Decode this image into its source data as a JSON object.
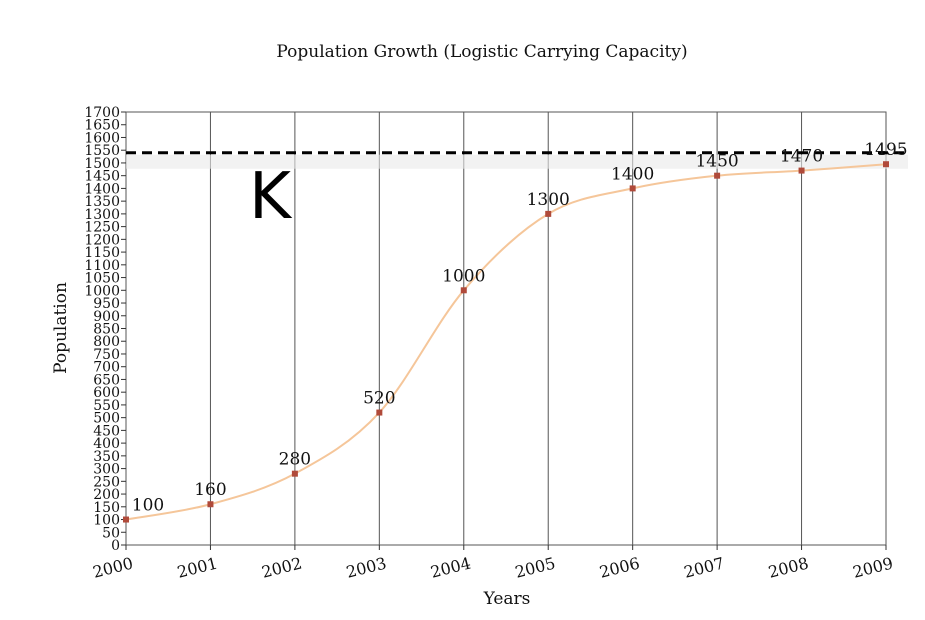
{
  "chart_data": {
    "type": "line",
    "title": "Population Growth (Logistic Carrying Capacity)",
    "xlabel": "Years",
    "ylabel": "Population",
    "categories": [
      "2000",
      "2001",
      "2002",
      "2003",
      "2004",
      "2005",
      "2006",
      "2007",
      "2008",
      "2009"
    ],
    "series": [
      {
        "name": "Population",
        "values": [
          100,
          160,
          280,
          520,
          1000,
          1300,
          1400,
          1450,
          1470,
          1495
        ],
        "labels": [
          "100",
          "160",
          "280",
          "520",
          "1000",
          "1300",
          "1400",
          "1450",
          "1470",
          "1495"
        ]
      }
    ],
    "ylim": [
      0,
      1700
    ],
    "ytick_step": 50,
    "yticks": [
      "0",
      "50",
      "100",
      "150",
      "200",
      "250",
      "300",
      "350",
      "400",
      "450",
      "500",
      "550",
      "600",
      "650",
      "700",
      "750",
      "800",
      "850",
      "900",
      "950",
      "1000",
      "1050",
      "1100",
      "1150",
      "1200",
      "1250",
      "1300",
      "1350",
      "1400",
      "1450",
      "1500",
      "1550",
      "1600",
      "1650",
      "1700"
    ],
    "carrying_capacity": {
      "value": 1540,
      "label": "K"
    },
    "grid": true,
    "colors": {
      "line": "#f5c69a",
      "marker": "#b04a3a",
      "k_line": "#000000",
      "grid": "#555555"
    }
  }
}
